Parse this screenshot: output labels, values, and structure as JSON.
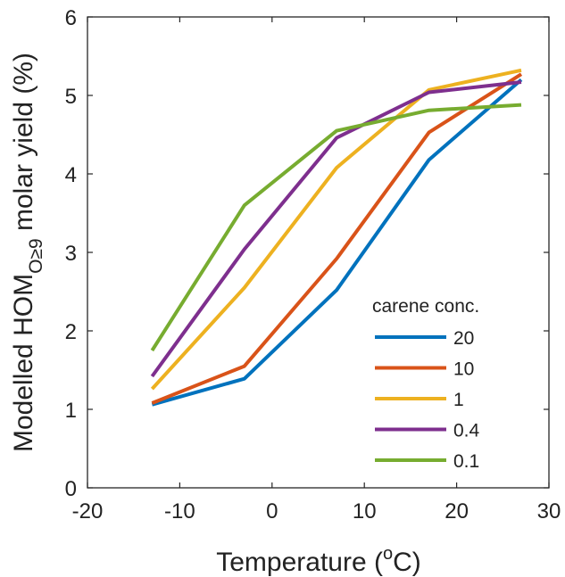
{
  "chart_data": {
    "type": "line",
    "xlabel": "Temperature (",
    "xlabel_sup": "o",
    "xlabel_tail": "C)",
    "ylabel_main": "Modelled HOM",
    "ylabel_sub": "O≥9",
    "ylabel_tail": " molar yield (%)",
    "xlim": [
      -20,
      30
    ],
    "ylim": [
      0,
      6
    ],
    "xticks": [
      -20,
      -10,
      0,
      10,
      20,
      30
    ],
    "yticks": [
      0,
      1,
      2,
      3,
      4,
      5,
      6
    ],
    "grid": false,
    "legend_title": "carene conc.",
    "legend_position": "bottom-right",
    "x": [
      -13,
      -3,
      7,
      17,
      27
    ],
    "series": [
      {
        "name": "20",
        "color": "#0072BD",
        "values": [
          1.06,
          1.39,
          2.52,
          4.18,
          5.2
        ]
      },
      {
        "name": "10",
        "color": "#D95319",
        "values": [
          1.08,
          1.55,
          2.92,
          4.53,
          5.27
        ]
      },
      {
        "name": "1",
        "color": "#EDB120",
        "values": [
          1.26,
          2.55,
          4.08,
          5.07,
          5.32
        ]
      },
      {
        "name": "0.4",
        "color": "#7E2F8E",
        "values": [
          1.42,
          3.04,
          4.46,
          5.04,
          5.17
        ]
      },
      {
        "name": "0.1",
        "color": "#77AC30",
        "values": [
          1.75,
          3.6,
          4.55,
          4.81,
          4.88
        ]
      }
    ]
  }
}
